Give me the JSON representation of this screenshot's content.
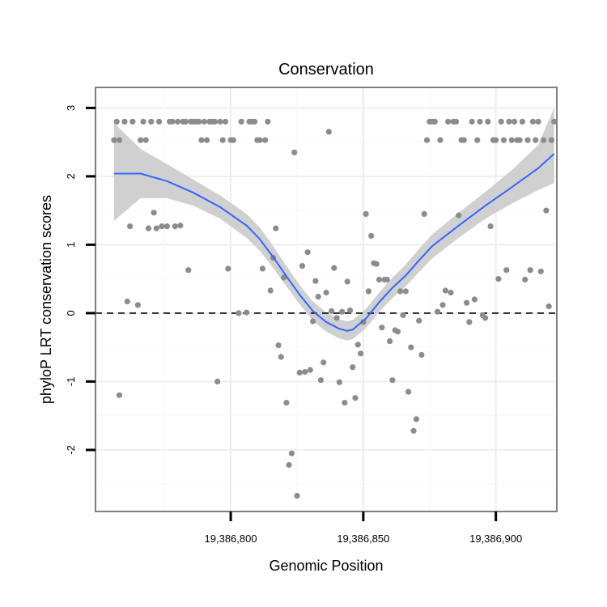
{
  "chart_data": {
    "type": "scatter",
    "title": "Conservation",
    "xlabel": "Genomic Position",
    "ylabel": "phyloP LRT conservation scores",
    "xlim": [
      19386749,
      19386923
    ],
    "ylim": [
      -2.9,
      3.3
    ],
    "x_ticks": [
      19386800,
      19386850,
      19386900
    ],
    "x_tick_labels": [
      "19,386,800",
      "19,386,850",
      "19,386,900"
    ],
    "y_ticks": [
      -2,
      -1,
      0,
      1,
      2,
      3
    ],
    "y_tick_labels": [
      "-2",
      "-1",
      "0",
      "1",
      "2",
      "3"
    ],
    "grid": true,
    "reference_line": {
      "y": 0,
      "style": "dashed"
    },
    "colors": {
      "points": "#8c8c8c",
      "smooth_line": "#3366ff",
      "ribbon": "#d0d0d0",
      "grid": "#eeeeee",
      "border": "#7f7f7f"
    },
    "series": [
      {
        "kind": "points",
        "points": [
          [
            19386756,
            2.53
          ],
          [
            19386757,
            2.8
          ],
          [
            19386758,
            2.53
          ],
          [
            19386758,
            -1.2
          ],
          [
            19386760,
            2.8
          ],
          [
            19386761,
            0.17
          ],
          [
            19386762,
            1.27
          ],
          [
            19386763,
            2.8
          ],
          [
            19386765,
            0.12
          ],
          [
            19386766,
            2.53
          ],
          [
            19386767,
            2.8
          ],
          [
            19386768,
            2.53
          ],
          [
            19386769,
            1.24
          ],
          [
            19386770,
            2.8
          ],
          [
            19386771,
            1.47
          ],
          [
            19386772,
            1.24
          ],
          [
            19386773,
            2.8
          ],
          [
            19386774,
            1.27
          ],
          [
            19386776,
            1.27
          ],
          [
            19386777,
            2.8
          ],
          [
            19386778,
            2.8
          ],
          [
            19386779,
            1.27
          ],
          [
            19386780,
            2.8
          ],
          [
            19386781,
            1.28
          ],
          [
            19386782,
            2.8
          ],
          [
            19386783,
            2.8
          ],
          [
            19386784,
            0.63
          ],
          [
            19386785,
            2.8
          ],
          [
            19386786,
            2.8
          ],
          [
            19386787,
            2.8
          ],
          [
            19386788,
            2.8
          ],
          [
            19386789,
            2.53
          ],
          [
            19386790,
            2.8
          ],
          [
            19386791,
            2.53
          ],
          [
            19386792,
            2.8
          ],
          [
            19386793,
            2.8
          ],
          [
            19386794,
            2.8
          ],
          [
            19386795,
            -1
          ],
          [
            19386796,
            2.8
          ],
          [
            19386797,
            2.53
          ],
          [
            19386798,
            2.8
          ],
          [
            19386799,
            0.65
          ],
          [
            19386800,
            2.53
          ],
          [
            19386801,
            2.53
          ],
          [
            19386803,
            0
          ],
          [
            19386804,
            2.8
          ],
          [
            19386806,
            0.01
          ],
          [
            19386807,
            2.8
          ],
          [
            19386808,
            2.8
          ],
          [
            19386809,
            2.8
          ],
          [
            19386810,
            2.53
          ],
          [
            19386811,
            2.53
          ],
          [
            19386812,
            0.65
          ],
          [
            19386813,
            2.53
          ],
          [
            19386814,
            2.8
          ],
          [
            19386815,
            0.33
          ],
          [
            19386816,
            0.81
          ],
          [
            19386817,
            1.24
          ],
          [
            19386818,
            -0.47
          ],
          [
            19386819,
            -0.64
          ],
          [
            19386820,
            0.52
          ],
          [
            19386821,
            -1.31
          ],
          [
            19386822,
            -2.22
          ],
          [
            19386823,
            -2.05
          ],
          [
            19386824,
            2.35
          ],
          [
            19386825,
            -2.67
          ],
          [
            19386826,
            -0.87
          ],
          [
            19386827,
            0.69
          ],
          [
            19386828,
            -0.86
          ],
          [
            19386829,
            0.89
          ],
          [
            19386830,
            -0.83
          ],
          [
            19386831,
            -0.12
          ],
          [
            19386832,
            0.47
          ],
          [
            19386833,
            0.24
          ],
          [
            19386834,
            -0.98
          ],
          [
            19386835,
            -0.72
          ],
          [
            19386836,
            0.3
          ],
          [
            19386837,
            2.65
          ],
          [
            19386838,
            0.03
          ],
          [
            19386839,
            0.66
          ],
          [
            19386840,
            -0.07
          ],
          [
            19386841,
            -1.01
          ],
          [
            19386842,
            0.02
          ],
          [
            19386843,
            -1.31
          ],
          [
            19386844,
            0.46
          ],
          [
            19386845,
            0.04
          ],
          [
            19386846,
            -0.79
          ],
          [
            19386847,
            -1.24
          ],
          [
            19386848,
            -0.46
          ],
          [
            19386849,
            -0.59
          ],
          [
            19386850,
            -0.13
          ],
          [
            19386851,
            1.45
          ],
          [
            19386852,
            0.32
          ],
          [
            19386853,
            1.13
          ],
          [
            19386854,
            0.73
          ],
          [
            19386855,
            0.72
          ],
          [
            19386856,
            0.49
          ],
          [
            19386857,
            -0.21
          ],
          [
            19386858,
            0.49
          ],
          [
            19386859,
            0.49
          ],
          [
            19386860,
            -0.41
          ],
          [
            19386861,
            -0.98
          ],
          [
            19386862,
            -0.25
          ],
          [
            19386863,
            -0.27
          ],
          [
            19386864,
            0.32
          ],
          [
            19386865,
            -0.03
          ],
          [
            19386866,
            0.32
          ],
          [
            19386867,
            -1.15
          ],
          [
            19386868,
            -0.5
          ],
          [
            19386869,
            -1.72
          ],
          [
            19386870,
            -1.55
          ],
          [
            19386871,
            -0.11
          ],
          [
            19386872,
            -0.61
          ],
          [
            19386873,
            1.45
          ],
          [
            19386874,
            2.53
          ],
          [
            19386875,
            2.8
          ],
          [
            19386876,
            2.8
          ],
          [
            19386877,
            2.8
          ],
          [
            19386878,
            0.02
          ],
          [
            19386879,
            2.53
          ],
          [
            19386880,
            0.12
          ],
          [
            19386881,
            0.33
          ],
          [
            19386882,
            2.8
          ],
          [
            19386883,
            0.3
          ],
          [
            19386884,
            2.8
          ],
          [
            19386885,
            2.8
          ],
          [
            19386886,
            1.43
          ],
          [
            19386887,
            2.53
          ],
          [
            19386888,
            2.53
          ],
          [
            19386889,
            0.15
          ],
          [
            19386890,
            -0.13
          ],
          [
            19386891,
            2.8
          ],
          [
            19386892,
            0.2
          ],
          [
            19386893,
            2.53
          ],
          [
            19386894,
            2.8
          ],
          [
            19386895,
            -0.03
          ],
          [
            19386896,
            -0.07
          ],
          [
            19386897,
            2.8
          ],
          [
            19386898,
            1.27
          ],
          [
            19386899,
            2.53
          ],
          [
            19386900,
            2.53
          ],
          [
            19386901,
            0.5
          ],
          [
            19386902,
            2.8
          ],
          [
            19386903,
            2.53
          ],
          [
            19386904,
            0.63
          ],
          [
            19386905,
            2.8
          ],
          [
            19386906,
            2.53
          ],
          [
            19386907,
            2.8
          ],
          [
            19386908,
            2.53
          ],
          [
            19386909,
            2.53
          ],
          [
            19386910,
            2.8
          ],
          [
            19386911,
            0.49
          ],
          [
            19386912,
            2.53
          ],
          [
            19386913,
            0.63
          ],
          [
            19386914,
            2.8
          ],
          [
            19386915,
            2.53
          ],
          [
            19386916,
            2.8
          ],
          [
            19386917,
            0.61
          ],
          [
            19386918,
            2.53
          ],
          [
            19386919,
            1.5
          ],
          [
            19386920,
            0.1
          ],
          [
            19386921,
            2.53
          ],
          [
            19386922,
            2.8
          ]
        ]
      },
      {
        "kind": "smooth",
        "x": [
          19386756,
          19386766,
          19386776,
          19386786,
          19386796,
          19386806,
          19386811,
          19386816,
          19386821,
          19386826,
          19386831,
          19386836,
          19386841,
          19386844,
          19386846,
          19386851,
          19386856,
          19386861,
          19386866,
          19386871,
          19386876,
          19386886,
          19386896,
          19386906,
          19386916,
          19386922
        ],
        "y": [
          2.04,
          2.04,
          1.93,
          1.76,
          1.55,
          1.28,
          1.08,
          0.82,
          0.54,
          0.27,
          0.03,
          -0.13,
          -0.23,
          -0.26,
          -0.24,
          -0.08,
          0.16,
          0.37,
          0.55,
          0.77,
          0.98,
          1.28,
          1.57,
          1.84,
          2.12,
          2.33
        ],
        "lower": [
          1.35,
          1.68,
          1.68,
          1.57,
          1.38,
          1.1,
          0.91,
          0.66,
          0.39,
          0.13,
          -0.11,
          -0.27,
          -0.37,
          -0.4,
          -0.38,
          -0.22,
          0.02,
          0.22,
          0.39,
          0.6,
          0.8,
          1.1,
          1.38,
          1.6,
          1.8,
          1.9
        ],
        "upper": [
          2.78,
          2.4,
          2.18,
          1.95,
          1.72,
          1.45,
          1.25,
          0.98,
          0.69,
          0.41,
          0.17,
          0.01,
          -0.09,
          -0.12,
          -0.1,
          0.06,
          0.3,
          0.52,
          0.71,
          0.94,
          1.15,
          1.47,
          1.77,
          2.09,
          2.46,
          3.0
        ]
      }
    ]
  }
}
